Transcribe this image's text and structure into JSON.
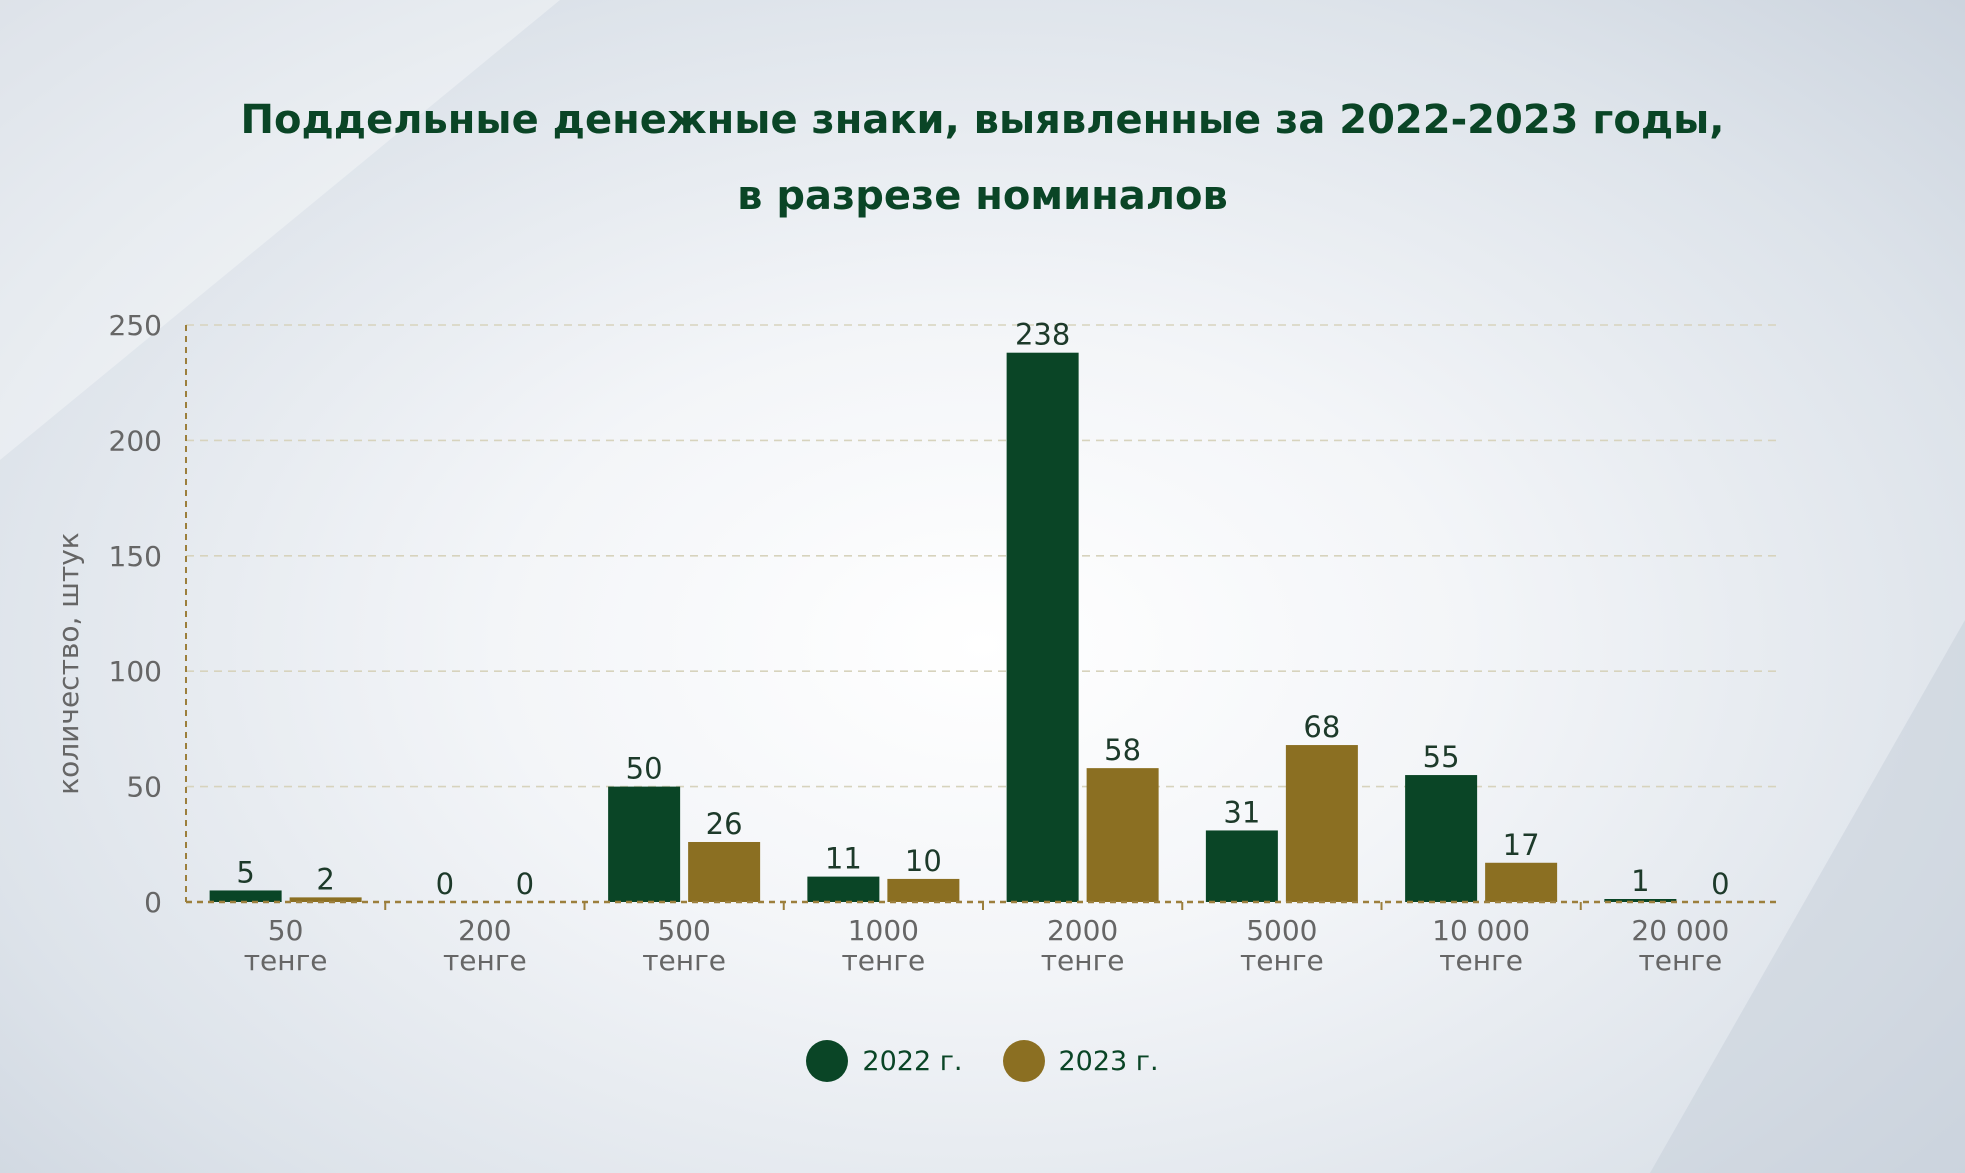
{
  "colors": {
    "series_2022": "#0a4526",
    "series_2023": "#8b6f22",
    "axis": "#9c7f3c",
    "grid": "#d7d3bd",
    "tick_text": "#666666",
    "value_text": "#1d3a2a",
    "title": "#0a4526"
  },
  "chart_data": {
    "type": "bar",
    "title": [
      "Поддельные денежные знаки, выявленные за 2022-2023 годы,",
      "в разрезе номиналов"
    ],
    "ylabel": "количество, штук",
    "xlabel": "",
    "ylim": [
      0,
      250
    ],
    "yticks": [
      "0",
      "50",
      "100",
      "150",
      "200",
      "250"
    ],
    "grid": true,
    "legend_position": "bottom-center",
    "categories": [
      [
        "50",
        "тенге"
      ],
      [
        "200",
        "тенге"
      ],
      [
        "500",
        "тенге"
      ],
      [
        "1000",
        "тенге"
      ],
      [
        "2000",
        "тенге"
      ],
      [
        "5000",
        "тенге"
      ],
      [
        "10 000",
        "тенге"
      ],
      [
        "20 000",
        "тенге"
      ]
    ],
    "series": [
      {
        "name": "2022 г.",
        "values": [
          5,
          0,
          50,
          11,
          238,
          31,
          55,
          1
        ]
      },
      {
        "name": "2023 г.",
        "values": [
          2,
          0,
          26,
          10,
          58,
          68,
          17,
          0
        ]
      }
    ]
  }
}
